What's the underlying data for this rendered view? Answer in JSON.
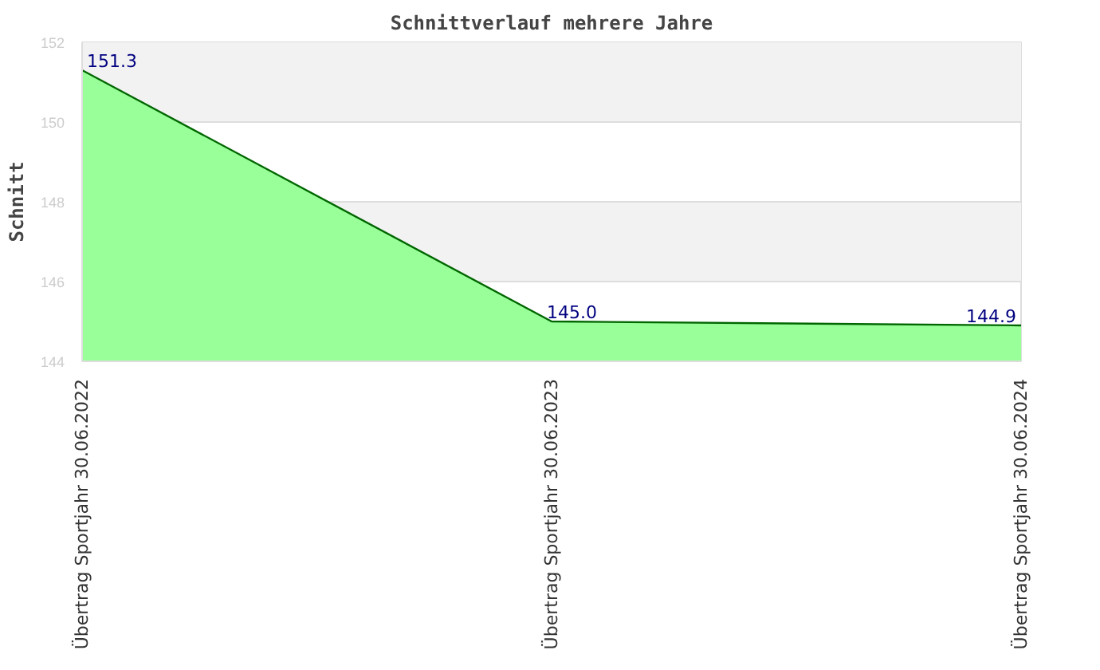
{
  "chart_data": {
    "type": "area",
    "title": "Schnittverlauf mehrere Jahre",
    "ylabel": "Schnitt",
    "categories": [
      "Übertrag Sportjahr 30.06.2022",
      "Übertrag Sportjahr 30.06.2023",
      "Übertrag Sportjahr 30.06.2024"
    ],
    "series": [
      {
        "color": "#99ff99",
        "values": [
          151.3,
          145.0,
          144.9
        ],
        "value_labels": [
          "151.3",
          "145.0",
          "144.9"
        ]
      }
    ],
    "ylim": [
      144,
      152
    ],
    "yticks": [
      144,
      146,
      148,
      150,
      152
    ],
    "grid": "y"
  }
}
